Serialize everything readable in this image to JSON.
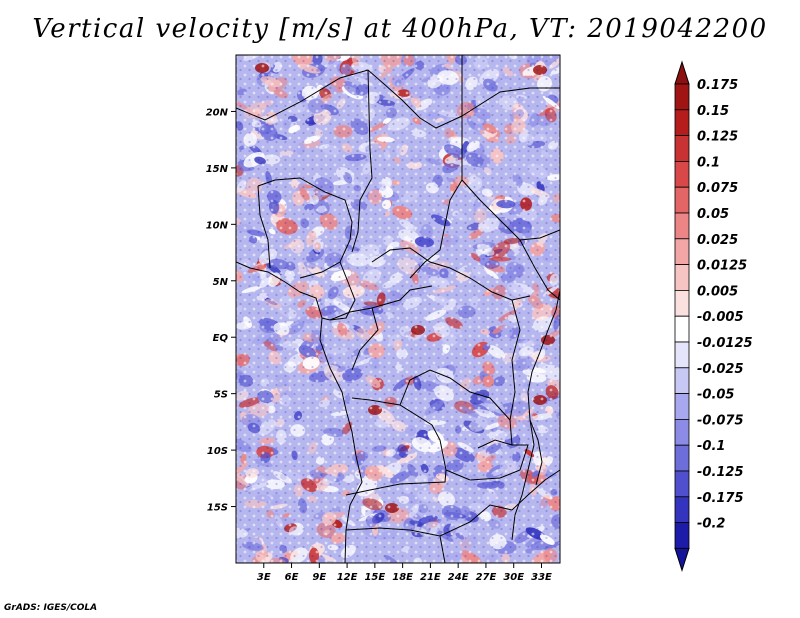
{
  "title": "Vertical velocity [m/s] at 400hPa, VT: 2019042200",
  "credit": "GrADS: IGES/COLA",
  "map": {
    "variable": "Vertical velocity",
    "units": "m/s",
    "level": "400hPa",
    "valid_time": "2019042200",
    "lon_range": [
      0,
      35
    ],
    "lat_range": [
      -20,
      25
    ],
    "lon_ticks": [
      {
        "value": 3,
        "label": "3E"
      },
      {
        "value": 6,
        "label": "6E"
      },
      {
        "value": 9,
        "label": "9E"
      },
      {
        "value": 12,
        "label": "12E"
      },
      {
        "value": 15,
        "label": "15E"
      },
      {
        "value": 18,
        "label": "18E"
      },
      {
        "value": 21,
        "label": "21E"
      },
      {
        "value": 24,
        "label": "24E"
      },
      {
        "value": 27,
        "label": "27E"
      },
      {
        "value": 30,
        "label": "30E"
      },
      {
        "value": 33,
        "label": "33E"
      }
    ],
    "lat_ticks": [
      {
        "value": 20,
        "label": "20N"
      },
      {
        "value": 15,
        "label": "15N"
      },
      {
        "value": 10,
        "label": "10N"
      },
      {
        "value": 5,
        "label": "5N"
      },
      {
        "value": 0,
        "label": "EQ"
      },
      {
        "value": -5,
        "label": "5S"
      },
      {
        "value": -10,
        "label": "10S"
      },
      {
        "value": -15,
        "label": "15S"
      }
    ]
  },
  "colorbar": {
    "levels": [
      {
        "label": "0.175",
        "color": "#a01414"
      },
      {
        "label": "0.15",
        "color": "#b51d1d"
      },
      {
        "label": "0.125",
        "color": "#c93232"
      },
      {
        "label": "0.1",
        "color": "#d84848"
      },
      {
        "label": "0.075",
        "color": "#e36565"
      },
      {
        "label": "0.05",
        "color": "#ec8585"
      },
      {
        "label": "0.025",
        "color": "#f3a6a6"
      },
      {
        "label": "0.0125",
        "color": "#f7c4c4"
      },
      {
        "label": "0.005",
        "color": "#fbe0e0"
      },
      {
        "label": "-0.005",
        "color": "#ffffff"
      },
      {
        "label": "-0.0125",
        "color": "#e4e4fb"
      },
      {
        "label": "-0.025",
        "color": "#c8c8f5"
      },
      {
        "label": "-0.05",
        "color": "#a8a8ee"
      },
      {
        "label": "-0.075",
        "color": "#8c8ce6"
      },
      {
        "label": "-0.1",
        "color": "#6e6edb"
      },
      {
        "label": "-0.125",
        "color": "#5050cf"
      },
      {
        "label": "-0.175",
        "color": "#3434bf"
      },
      {
        "label": "-0.2",
        "color": "#1c1ca8"
      }
    ],
    "top_cap_color": "#8c1010",
    "bottom_cap_color": "#14149a"
  }
}
